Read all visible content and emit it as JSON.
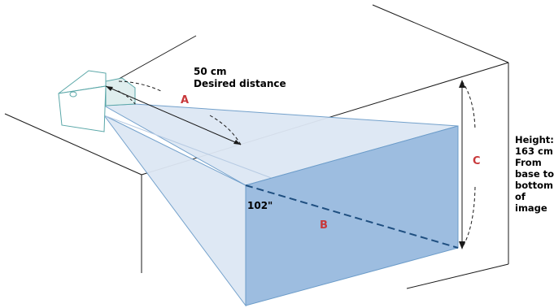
{
  "labels": {
    "distance_value": "50 cm",
    "distance_caption": "Desired distance",
    "marker_a": "A",
    "marker_b": "B",
    "marker_c": "C",
    "diagonal": "102\"",
    "height_lines": [
      "Height:",
      "163 cm",
      "From",
      "base to",
      "bottom",
      "of",
      "image"
    ]
  },
  "colors": {
    "marker": "#c8383a",
    "projection_light": "#dde7f4",
    "projection_dark": "#9dbde0",
    "projector_outline": "#5aa7a8",
    "beam_edge": "#6c9cc9",
    "lines": "#1a1a1a",
    "diagonal_dash": "#1f4f80"
  }
}
